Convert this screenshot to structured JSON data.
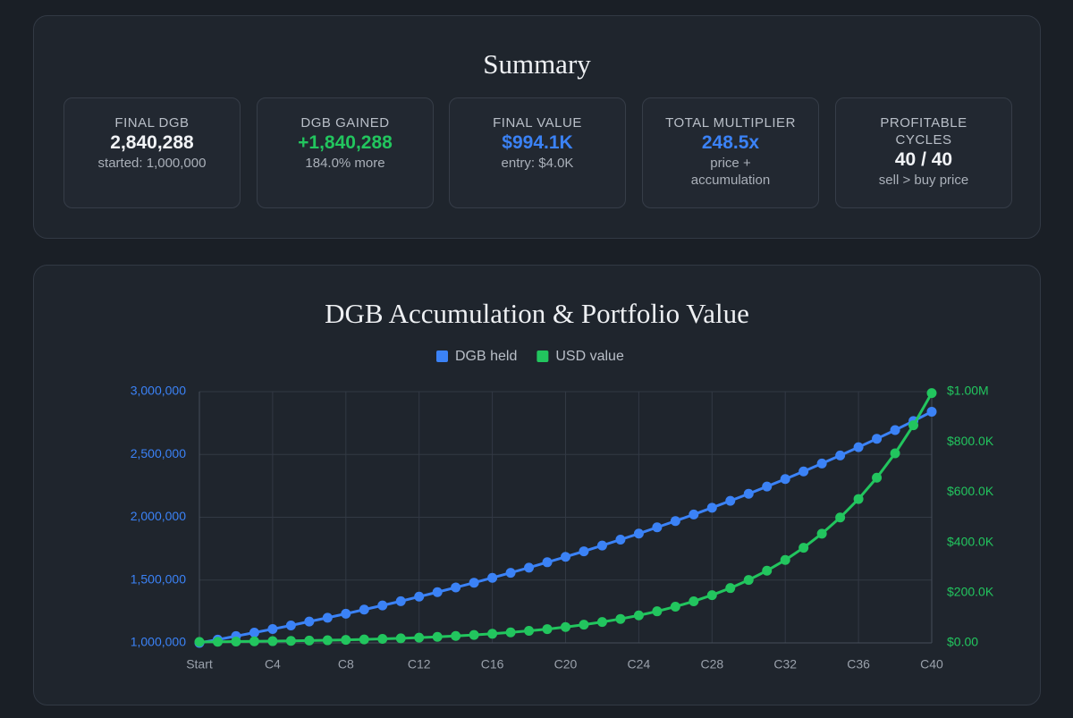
{
  "summary": {
    "title": "Summary",
    "cards": [
      {
        "label": "FINAL DGB",
        "value": "2,840,288",
        "note": "started: 1,000,000",
        "color": "#f1f3f6"
      },
      {
        "label": "DGB GAINED",
        "value": "+1,840,288",
        "note": "184.0% more",
        "color": "#22c55e"
      },
      {
        "label": "FINAL VALUE",
        "value": "$994.1K",
        "note": "entry: $4.0K",
        "color": "#3b82f6"
      },
      {
        "label": "TOTAL MULTIPLIER",
        "value": "248.5x",
        "note": "price + accumulation",
        "color": "#3b82f6"
      },
      {
        "label": "PROFITABLE CYCLES",
        "value": "40 / 40",
        "note": "sell > buy price",
        "color": "#f1f3f6"
      }
    ]
  },
  "chart_data": {
    "type": "line",
    "title": "DGB Accumulation & Portfolio Value",
    "categories": [
      "Start",
      null,
      null,
      null,
      "C4",
      null,
      null,
      null,
      "C8",
      null,
      null,
      null,
      "C12",
      null,
      null,
      null,
      "C16",
      null,
      null,
      null,
      "C20",
      null,
      null,
      null,
      "C24",
      null,
      null,
      null,
      "C28",
      null,
      null,
      null,
      "C32",
      null,
      null,
      null,
      "C36",
      null,
      null,
      null,
      "C40"
    ],
    "series": [
      {
        "name": "DGB held",
        "color": "#3b82f6",
        "values": [
          1000000,
          1026000,
          1054000,
          1082000,
          1110000,
          1139000,
          1170000,
          1200000,
          1232000,
          1265000,
          1298000,
          1332000,
          1368000,
          1404000,
          1441000,
          1479000,
          1518000,
          1558000,
          1599000,
          1642000,
          1685000,
          1729000,
          1775000,
          1822000,
          1870000,
          1920000,
          1970000,
          2022000,
          2076000,
          2131000,
          2187000,
          2245000,
          2304000,
          2365000,
          2428000,
          2492000,
          2558000,
          2625000,
          2694000,
          2766000,
          2840288
        ]
      },
      {
        "name": "USD value",
        "color": "#22c55e",
        "axis": "y2",
        "values": [
          4000,
          4600,
          5300,
          6100,
          6900,
          8000,
          9200,
          10500,
          12100,
          13800,
          15900,
          18200,
          20900,
          24000,
          27600,
          31700,
          36300,
          41700,
          47900,
          54900,
          63100,
          72400,
          83100,
          95400,
          109500,
          125700,
          144300,
          165600,
          190100,
          218200,
          250400,
          287400,
          329900,
          378700,
          434700,
          499000,
          572700,
          657400,
          754600,
          866200,
          994100
        ]
      }
    ],
    "ylim": [
      1000000,
      3000000
    ],
    "yticks": [
      {
        "value": 1000000,
        "label": "1,000,000"
      },
      {
        "value": 1500000,
        "label": "1,500,000"
      },
      {
        "value": 2000000,
        "label": "2,000,000"
      },
      {
        "value": 2500000,
        "label": "2,500,000"
      },
      {
        "value": 3000000,
        "label": "3,000,000"
      }
    ],
    "y2lim": [
      0,
      1000000
    ],
    "y2ticks": [
      {
        "value": 0,
        "label": "$0.00"
      },
      {
        "value": 200000,
        "label": "$200.0K"
      },
      {
        "value": 400000,
        "label": "$400.0K"
      },
      {
        "value": 600000,
        "label": "$600.0K"
      },
      {
        "value": 800000,
        "label": "$800.0K"
      },
      {
        "value": 1000000,
        "label": "$1.00M"
      }
    ],
    "grid": true,
    "legend": "top"
  }
}
